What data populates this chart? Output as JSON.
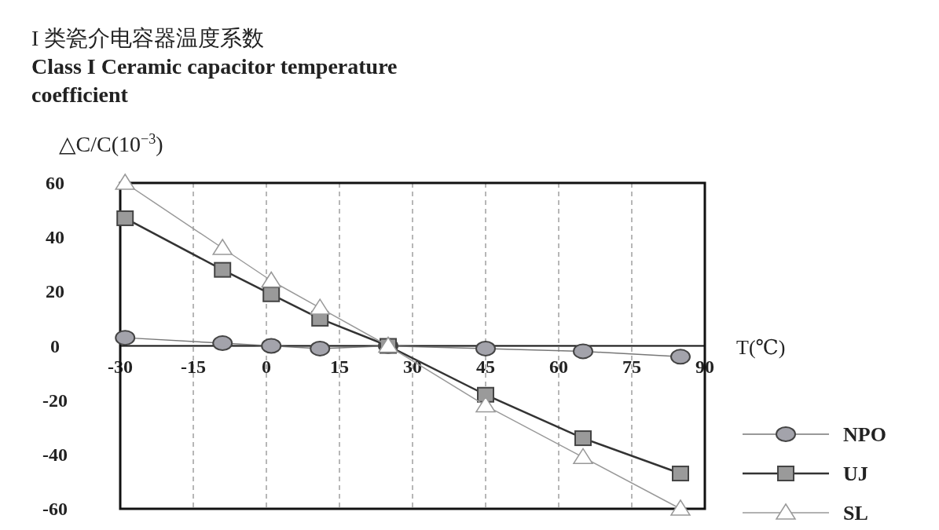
{
  "chart_data": {
    "type": "line",
    "title": "I 类瓷介电容器温度系数",
    "subtitle": "Class I Ceramic capacitor temperature coefficient",
    "xlabel": "T(℃)",
    "ylabel": "△C/C(10$^{−3}$)",
    "xlim": [
      -30,
      90
    ],
    "xticks": [
      -30,
      -15,
      0,
      15,
      30,
      45,
      60,
      75,
      90
    ],
    "ylim": [
      -60,
      60
    ],
    "yticks": [
      -60,
      -40,
      -20,
      0,
      20,
      40,
      60
    ],
    "x": [
      -29,
      -9,
      1,
      11,
      25,
      45,
      65,
      85
    ],
    "grid": "x",
    "legend": "bottom right",
    "line_style": "solid",
    "series": [
      {
        "name": "NPO",
        "color": "#a3a3ab",
        "marker": "circle",
        "values": [
          3,
          1,
          0,
          -1,
          0,
          -1,
          -2,
          -4
        ]
      },
      {
        "name": "UJ",
        "color": "#9a9a9a",
        "marker": "square",
        "values": [
          47,
          28,
          19,
          10,
          0,
          -18,
          -34,
          -47
        ]
      },
      {
        "name": "SL",
        "color": "#ffffff",
        "marker": "triangle",
        "values": [
          60,
          36,
          24,
          14,
          0,
          -22,
          -41,
          -60
        ]
      }
    ]
  }
}
